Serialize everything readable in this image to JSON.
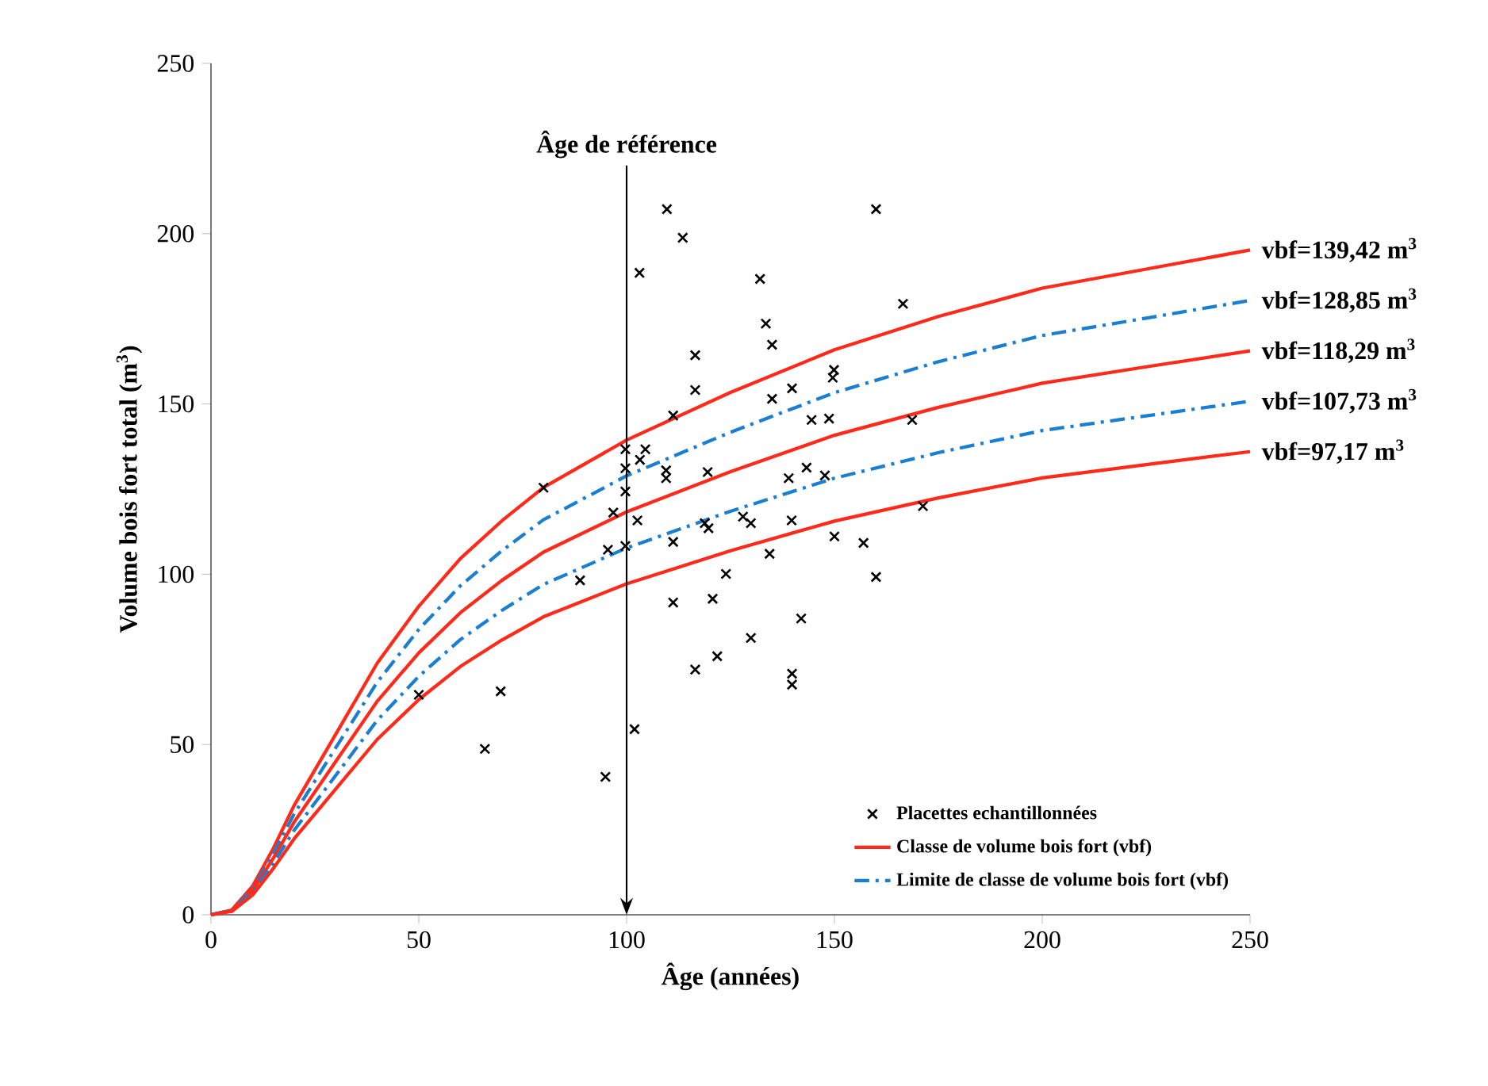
{
  "chart_data": {
    "type": "line",
    "xlabel": "Âge (années)",
    "ylabel": "Volume bois fort total (m$^{3}$)",
    "xlim": [
      0,
      250
    ],
    "ylim": [
      0,
      250
    ],
    "xticks": [
      0,
      50,
      100,
      150,
      200,
      250
    ],
    "yticks": [
      0,
      50,
      100,
      150,
      200,
      250
    ],
    "grid": false,
    "legend": "bottom right",
    "series": [
      {
        "type": "scatter",
        "name": "Placettes echantillonnées",
        "color": "#000000",
        "marker": "cross",
        "x": [
          50,
          65.9,
          69.7,
          80,
          88.8,
          94.9,
          95.5,
          96.8,
          99.7,
          99.7,
          99.7,
          99.7,
          101.9,
          102.6,
          103.1,
          103.2,
          104.5,
          109.5,
          109.5,
          109.7,
          111.2,
          111.2,
          111.2,
          113.5,
          116.5,
          116.5,
          116.5,
          118.8,
          119.7,
          119.5,
          120.7,
          121.8,
          123.9,
          128,
          129.9,
          129.9,
          132.1,
          133.5,
          134.4,
          135,
          135,
          139,
          139.7,
          139.8,
          139.8,
          139.8,
          142,
          143.3,
          144.5,
          147.7,
          148.7,
          149.6,
          149.9,
          150,
          157,
          160,
          160,
          166.5,
          168.7,
          171.3
        ],
        "values": [
          64.6,
          48.7,
          65.6,
          125.4,
          98.2,
          40.5,
          107.2,
          118.1,
          108.3,
          124.3,
          131.1,
          136.7,
          54.5,
          115.8,
          188.5,
          133.6,
          136.7,
          128.2,
          130.5,
          207.2,
          146.6,
          109.5,
          91.7,
          198.8,
          164.3,
          154.1,
          72,
          115,
          113.5,
          130,
          92.8,
          75.9,
          100.1,
          116.9,
          115,
          81.3,
          186.7,
          173.6,
          106,
          167.4,
          151.5,
          128.2,
          115.8,
          154.6,
          70.8,
          67.6,
          87,
          131.3,
          145.3,
          129,
          145.7,
          157.7,
          160,
          111.1,
          109.2,
          207.2,
          99.2,
          179.4,
          145.3,
          120
        ]
      },
      {
        "name": "Classe de volume bois fort (vbf)",
        "color": "#ff2a1a",
        "line_style": "solid",
        "marker": "none",
        "x": [
          0,
          5,
          10,
          15,
          20,
          30,
          40,
          50,
          60,
          70,
          80,
          100,
          125,
          150,
          175,
          200,
          225,
          250
        ],
        "values": [
          0,
          1.4,
          8.4,
          19.5,
          32.1,
          53.0,
          73.9,
          90.6,
          104.6,
          115.7,
          125.5,
          139.4,
          153.4,
          165.9,
          175.7,
          184.0,
          189.6,
          195.2
        ]
      },
      {
        "name": "Limite de classe de volume bois fort (vbf)",
        "color": "#1a7fd0",
        "line_style": "dashdot",
        "marker": "none",
        "x": [
          0,
          5,
          10,
          15,
          20,
          30,
          40,
          50,
          60,
          70,
          80,
          100,
          125,
          150,
          175,
          200,
          225,
          250
        ],
        "values": [
          0,
          1.3,
          7.7,
          18.0,
          29.6,
          49.0,
          68.3,
          83.8,
          96.6,
          106.9,
          116.0,
          128.9,
          141.7,
          153.3,
          162.4,
          170.1,
          175.2,
          180.4
        ]
      },
      {
        "color": "#ff2a1a",
        "line_style": "solid",
        "marker": "none",
        "x": [
          0,
          5,
          10,
          15,
          20,
          30,
          40,
          50,
          60,
          70,
          80,
          100,
          125,
          150,
          175,
          200,
          225,
          250
        ],
        "values": [
          0,
          1.2,
          7.1,
          16.6,
          27.2,
          45.0,
          62.7,
          76.9,
          88.7,
          98.2,
          106.5,
          118.3,
          130.1,
          140.8,
          149.0,
          156.1,
          160.9,
          165.6
        ]
      },
      {
        "color": "#1a7fd0",
        "line_style": "dashdot",
        "marker": "none",
        "x": [
          0,
          5,
          10,
          15,
          20,
          30,
          40,
          50,
          60,
          70,
          80,
          100,
          125,
          150,
          175,
          200,
          225,
          250
        ],
        "values": [
          0,
          1.1,
          6.5,
          15.1,
          24.8,
          40.9,
          57.1,
          70.0,
          80.8,
          89.4,
          97.0,
          107.7,
          118.5,
          128.2,
          135.7,
          142.2,
          146.5,
          150.8
        ]
      },
      {
        "color": "#ff2a1a",
        "line_style": "solid",
        "marker": "none",
        "x": [
          0,
          5,
          10,
          15,
          20,
          30,
          40,
          50,
          60,
          70,
          80,
          100,
          125,
          150,
          175,
          200,
          225,
          250
        ],
        "values": [
          0,
          1.0,
          5.8,
          13.6,
          22.3,
          36.9,
          51.5,
          63.2,
          72.9,
          80.7,
          87.5,
          97.2,
          106.9,
          115.6,
          122.4,
          128.3,
          132.2,
          136.0
        ]
      }
    ],
    "ref_lines": [
      {
        "axis": "x",
        "value": 100,
        "label": "Âge de référence",
        "color": "#000000"
      }
    ],
    "annotations": [
      "vbf=139,42 m$^{3}$",
      "vbf=128,85 m$^{3}$",
      "vbf=118,29 m$^{3}$",
      "vbf=107,73 m$^{3}$",
      "vbf=97,17 m$^{3}$"
    ]
  }
}
